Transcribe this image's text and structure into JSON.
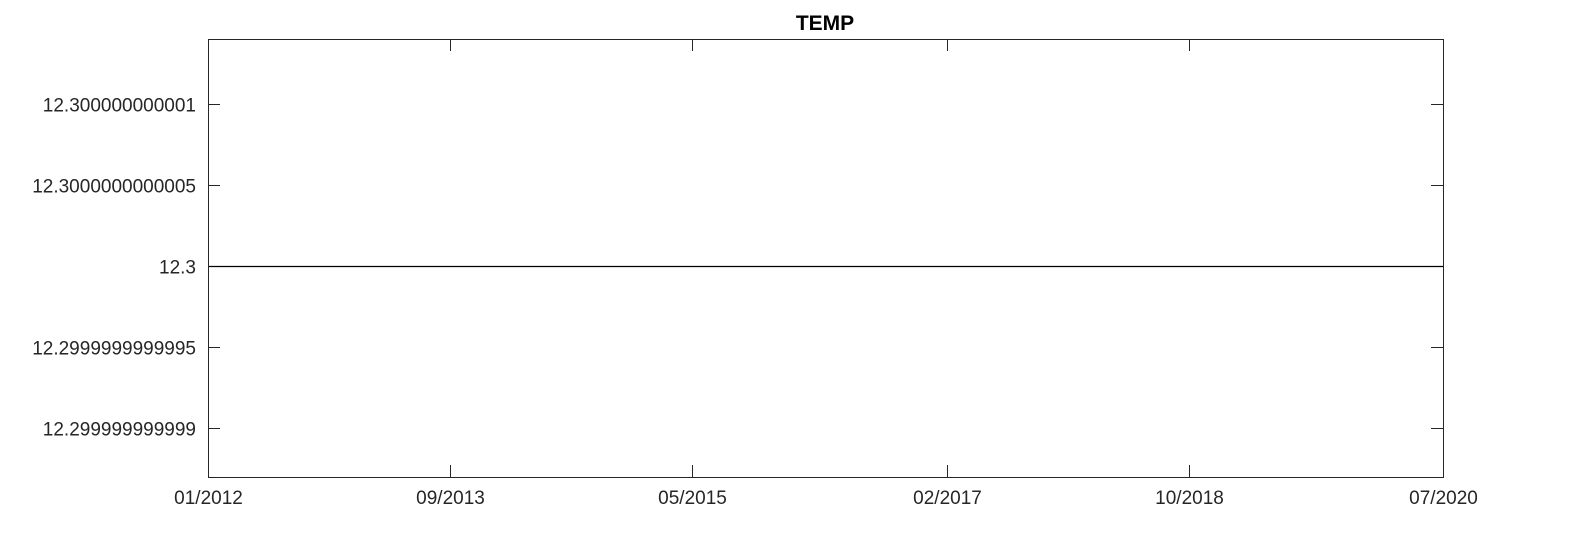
{
  "chart_data": {
    "type": "line",
    "title": "TEMP",
    "xlabel": "",
    "ylabel": "",
    "x_ticks": [
      {
        "date": "2012-01-01",
        "label": "01/2012"
      },
      {
        "date": "2013-09-01",
        "label": "09/2013"
      },
      {
        "date": "2015-05-01",
        "label": "05/2015"
      },
      {
        "date": "2017-02-01",
        "label": "02/2017"
      },
      {
        "date": "2018-10-01",
        "label": "10/2018"
      },
      {
        "date": "2020-07-01",
        "label": "07/2020"
      }
    ],
    "xlim": [
      "2012-01-01",
      "2020-07-01"
    ],
    "y_ticks": [
      {
        "value": 12.299999999999,
        "label": "12.299999999999"
      },
      {
        "value": 12.2999999999995,
        "label": "12.2999999999995"
      },
      {
        "value": 12.3,
        "label": "12.3"
      },
      {
        "value": 12.3000000000005,
        "label": "12.3000000000005"
      },
      {
        "value": 12.300000000001,
        "label": "12.300000000001"
      }
    ],
    "ylim": [
      12.2999999999987,
      12.3000000000014
    ],
    "grid": false,
    "series": [
      {
        "x": [
          "2012-01-01",
          "2020-07-01"
        ],
        "y": [
          12.3,
          12.3
        ],
        "color": "#000000"
      }
    ]
  }
}
